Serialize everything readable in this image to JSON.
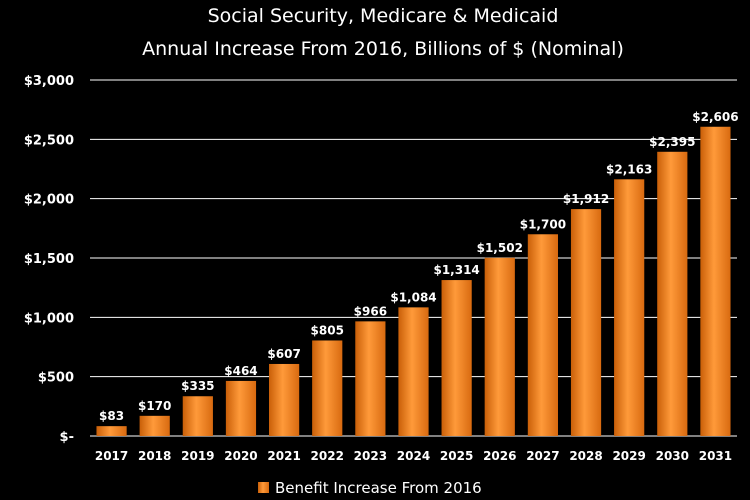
{
  "chart_data": {
    "type": "bar",
    "title": "Social Security, Medicare & Medicaid",
    "subtitle": "Annual Increase From 2016, Billions of $ (Nominal)",
    "categories": [
      "2017",
      "2018",
      "2019",
      "2020",
      "2021",
      "2022",
      "2023",
      "2024",
      "2025",
      "2026",
      "2027",
      "2028",
      "2029",
      "2030",
      "2031"
    ],
    "series": [
      {
        "name": "Benefit Increase From 2016",
        "values": [
          83,
          170,
          335,
          464,
          607,
          805,
          966,
          1084,
          1314,
          1502,
          1700,
          1912,
          2163,
          2395,
          2606
        ],
        "data_labels": [
          "$83",
          "$170",
          "$335",
          "$464",
          "$607",
          "$805",
          "$966",
          "$1,084",
          "$1,314",
          "$1,502",
          "$1,700",
          "$1,912",
          "$2,163",
          "$2,395",
          "$2,606"
        ],
        "color": "#f07e1a"
      }
    ],
    "ylim": [
      0,
      3000
    ],
    "yticks": [
      0,
      500,
      1000,
      1500,
      2000,
      2500,
      3000
    ],
    "ytick_labels": [
      "$-",
      "$500",
      "$1,000",
      "$1,500",
      "$2,000",
      "$2,500",
      "$3,000"
    ],
    "grid": true,
    "legend_position": "bottom"
  }
}
